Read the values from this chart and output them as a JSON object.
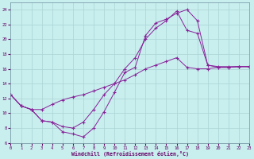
{
  "xlabel": "Windchill (Refroidissement éolien,°C)",
  "bg_color": "#c8eeee",
  "grid_color": "#aad4d4",
  "line_color": "#882299",
  "xlim": [
    0,
    23
  ],
  "ylim": [
    6,
    25
  ],
  "yticks": [
    6,
    8,
    10,
    12,
    14,
    16,
    18,
    20,
    22,
    24
  ],
  "xticks": [
    0,
    1,
    2,
    3,
    4,
    5,
    6,
    7,
    8,
    9,
    10,
    11,
    12,
    13,
    14,
    15,
    16,
    17,
    18,
    19,
    20,
    21,
    22,
    23
  ],
  "line1_x": [
    0,
    1,
    2,
    3,
    4,
    5,
    6,
    7,
    8,
    9,
    10,
    11,
    12,
    13,
    14,
    15,
    16,
    17,
    18,
    19,
    20,
    21,
    22,
    23
  ],
  "line1_y": [
    12.5,
    11.0,
    10.5,
    9.0,
    8.8,
    7.5,
    7.2,
    6.8,
    8.0,
    10.2,
    12.8,
    15.5,
    16.2,
    20.5,
    22.2,
    22.7,
    23.5,
    24.0,
    22.5,
    16.5,
    16.2,
    16.2,
    16.3,
    16.3
  ],
  "line2_x": [
    0,
    1,
    2,
    3,
    4,
    5,
    6,
    7,
    8,
    9,
    10,
    11,
    12,
    13,
    14,
    15,
    16,
    17,
    18,
    19,
    20,
    21,
    22,
    23
  ],
  "line2_y": [
    12.5,
    11.0,
    10.5,
    9.0,
    8.8,
    8.2,
    8.0,
    8.8,
    10.5,
    12.5,
    14.0,
    16.0,
    17.5,
    20.0,
    21.5,
    22.5,
    23.8,
    21.2,
    20.8,
    16.5,
    16.3,
    16.3,
    16.3,
    16.3
  ],
  "line3_x": [
    0,
    1,
    2,
    3,
    4,
    5,
    6,
    7,
    8,
    9,
    10,
    11,
    12,
    13,
    14,
    15,
    16,
    17,
    18,
    19,
    20,
    21,
    22,
    23
  ],
  "line3_y": [
    12.5,
    11.0,
    10.5,
    10.5,
    11.2,
    11.8,
    12.2,
    12.5,
    13.0,
    13.5,
    14.0,
    14.5,
    15.2,
    16.0,
    16.5,
    17.0,
    17.5,
    16.2,
    16.0,
    16.0,
    16.2,
    16.2,
    16.3,
    16.3
  ]
}
